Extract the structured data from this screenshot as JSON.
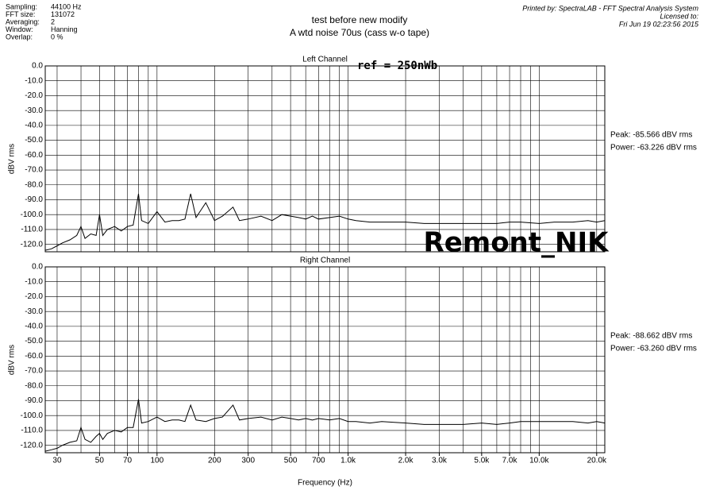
{
  "title": "test before new modify",
  "subtitle": "A wtd noise 70us (cass w-o tape)",
  "header": {
    "settings": [
      [
        "Sampling:",
        "44100 Hz"
      ],
      [
        "FFT size:",
        "131072"
      ],
      [
        "Averaging:",
        "2"
      ],
      [
        "Window:",
        "Hanning"
      ],
      [
        "Overlap:",
        "0 %"
      ]
    ],
    "printed_by": "Printed by: SpectraLAB - FFT Spectral Analysis System",
    "licensed_to": "Licensed to:",
    "date": "Fri Jun 19 02:23:56 2015"
  },
  "watermark": "Remont_NIK",
  "chart_data": [
    {
      "type": "line",
      "title": "Left Channel",
      "y_label": "dBV rms",
      "reference": "ref = 250nWb",
      "annotations": [
        "Peak: -85.566 dBV rms",
        "Power: -63.226 dBV rms"
      ],
      "xscale": "log",
      "xlim": [
        26,
        22050
      ],
      "ylim": [
        -125,
        0
      ],
      "yticks": [
        {
          "value": 0,
          "label": "0.0"
        },
        {
          "value": -10,
          "label": "-10.0"
        },
        {
          "value": -20,
          "label": "-20.0"
        },
        {
          "value": -30,
          "label": "-30.0"
        },
        {
          "value": -40,
          "label": "-40.0"
        },
        {
          "value": -50,
          "label": "-50.0"
        },
        {
          "value": -60,
          "label": "-60.0"
        },
        {
          "value": -70,
          "label": "-70.0"
        },
        {
          "value": -80,
          "label": "-80.0"
        },
        {
          "value": -90,
          "label": "-90.0"
        },
        {
          "value": -100,
          "label": "-100.0"
        },
        {
          "value": -110,
          "label": "-110.0"
        },
        {
          "value": -120,
          "label": "-120.0"
        }
      ],
      "xgrid": [
        30,
        40,
        50,
        60,
        70,
        80,
        90,
        100,
        200,
        300,
        400,
        500,
        600,
        700,
        800,
        900,
        1000,
        2000,
        3000,
        4000,
        5000,
        6000,
        7000,
        8000,
        9000,
        10000,
        20000
      ],
      "color": "#000000",
      "x": [
        26,
        28,
        30,
        32,
        35,
        38,
        40,
        42,
        45,
        48,
        50,
        52,
        55,
        60,
        65,
        70,
        75,
        80,
        83,
        90,
        100,
        110,
        120,
        130,
        140,
        150,
        160,
        180,
        200,
        220,
        250,
        270,
        300,
        350,
        400,
        450,
        500,
        550,
        600,
        650,
        700,
        800,
        900,
        1000,
        1100,
        1300,
        1500,
        2000,
        2500,
        3000,
        4000,
        5000,
        6000,
        7000,
        8000,
        10000,
        12000,
        15000,
        18000,
        20000,
        22050
      ],
      "values": [
        -124,
        -123,
        -121,
        -119,
        -117,
        -114,
        -108,
        -116,
        -113,
        -114,
        -100,
        -114,
        -110,
        -108,
        -111,
        -108,
        -107,
        -86,
        -104,
        -106,
        -98,
        -105,
        -104,
        -104,
        -103,
        -86,
        -102,
        -92,
        -104,
        -101,
        -95,
        -104,
        -103,
        -101,
        -104,
        -100,
        -101,
        -102,
        -103,
        -101,
        -103,
        -102,
        -101,
        -103,
        -104,
        -105,
        -105,
        -105,
        -106,
        -106,
        -106,
        -106,
        -106,
        -105,
        -105,
        -106,
        -105,
        -105,
        -104,
        -105,
        -104
      ]
    },
    {
      "type": "line",
      "title": "Right Channel",
      "y_label": "dBV rms",
      "x_label": "Frequency (Hz)",
      "annotations": [
        "Peak: -88.662 dBV rms",
        "Power: -63.260 dBV rms"
      ],
      "xscale": "log",
      "xlim": [
        26,
        22050
      ],
      "ylim": [
        -125,
        0
      ],
      "yticks": [
        {
          "value": 0,
          "label": "0.0"
        },
        {
          "value": -10,
          "label": "-10.0"
        },
        {
          "value": -20,
          "label": "-20.0"
        },
        {
          "value": -30,
          "label": "-30.0"
        },
        {
          "value": -40,
          "label": "-40.0"
        },
        {
          "value": -50,
          "label": "-50.0"
        },
        {
          "value": -60,
          "label": "-60.0"
        },
        {
          "value": -70,
          "label": "-70.0"
        },
        {
          "value": -80,
          "label": "-80.0"
        },
        {
          "value": -90,
          "label": "-90.0"
        },
        {
          "value": -100,
          "label": "-100.0"
        },
        {
          "value": -110,
          "label": "-110.0"
        },
        {
          "value": -120,
          "label": "-120.0"
        }
      ],
      "xgrid": [
        30,
        40,
        50,
        60,
        70,
        80,
        90,
        100,
        200,
        300,
        400,
        500,
        600,
        700,
        800,
        900,
        1000,
        2000,
        3000,
        4000,
        5000,
        6000,
        7000,
        8000,
        9000,
        10000,
        20000
      ],
      "xticks": [
        30,
        50,
        70,
        100,
        200,
        300,
        500,
        700,
        {
          "value": 1000,
          "label": "1.0k"
        },
        {
          "value": 2000,
          "label": "2.0k"
        },
        {
          "value": 3000,
          "label": "3.0k"
        },
        {
          "value": 5000,
          "label": "5.0k"
        },
        {
          "value": 7000,
          "label": "7.0k"
        },
        {
          "value": 10000,
          "label": "10.0k"
        },
        {
          "value": 20000,
          "label": "20.0k"
        }
      ],
      "color": "#000000",
      "x": [
        26,
        28,
        30,
        32,
        35,
        38,
        40,
        42,
        45,
        48,
        50,
        52,
        55,
        60,
        65,
        70,
        75,
        80,
        83,
        90,
        100,
        110,
        120,
        130,
        140,
        150,
        160,
        180,
        200,
        220,
        250,
        270,
        300,
        350,
        400,
        450,
        500,
        550,
        600,
        650,
        700,
        800,
        900,
        1000,
        1100,
        1300,
        1500,
        2000,
        2500,
        3000,
        4000,
        5000,
        6000,
        7000,
        8000,
        10000,
        12000,
        15000,
        18000,
        20000,
        22050
      ],
      "values": [
        -124,
        -123,
        -122,
        -120,
        -118,
        -117,
        -108,
        -116,
        -118,
        -114,
        -112,
        -116,
        -112,
        -110,
        -111,
        -108,
        -108,
        -89,
        -105,
        -104,
        -101,
        -104,
        -103,
        -103,
        -104,
        -93,
        -103,
        -104,
        -102,
        -101,
        -93,
        -103,
        -102,
        -101,
        -103,
        -101,
        -102,
        -103,
        -102,
        -103,
        -102,
        -103,
        -102,
        -104,
        -104,
        -105,
        -104,
        -105,
        -106,
        -106,
        -106,
        -105,
        -106,
        -105,
        -104,
        -104,
        -104,
        -104,
        -105,
        -104,
        -105
      ]
    }
  ]
}
